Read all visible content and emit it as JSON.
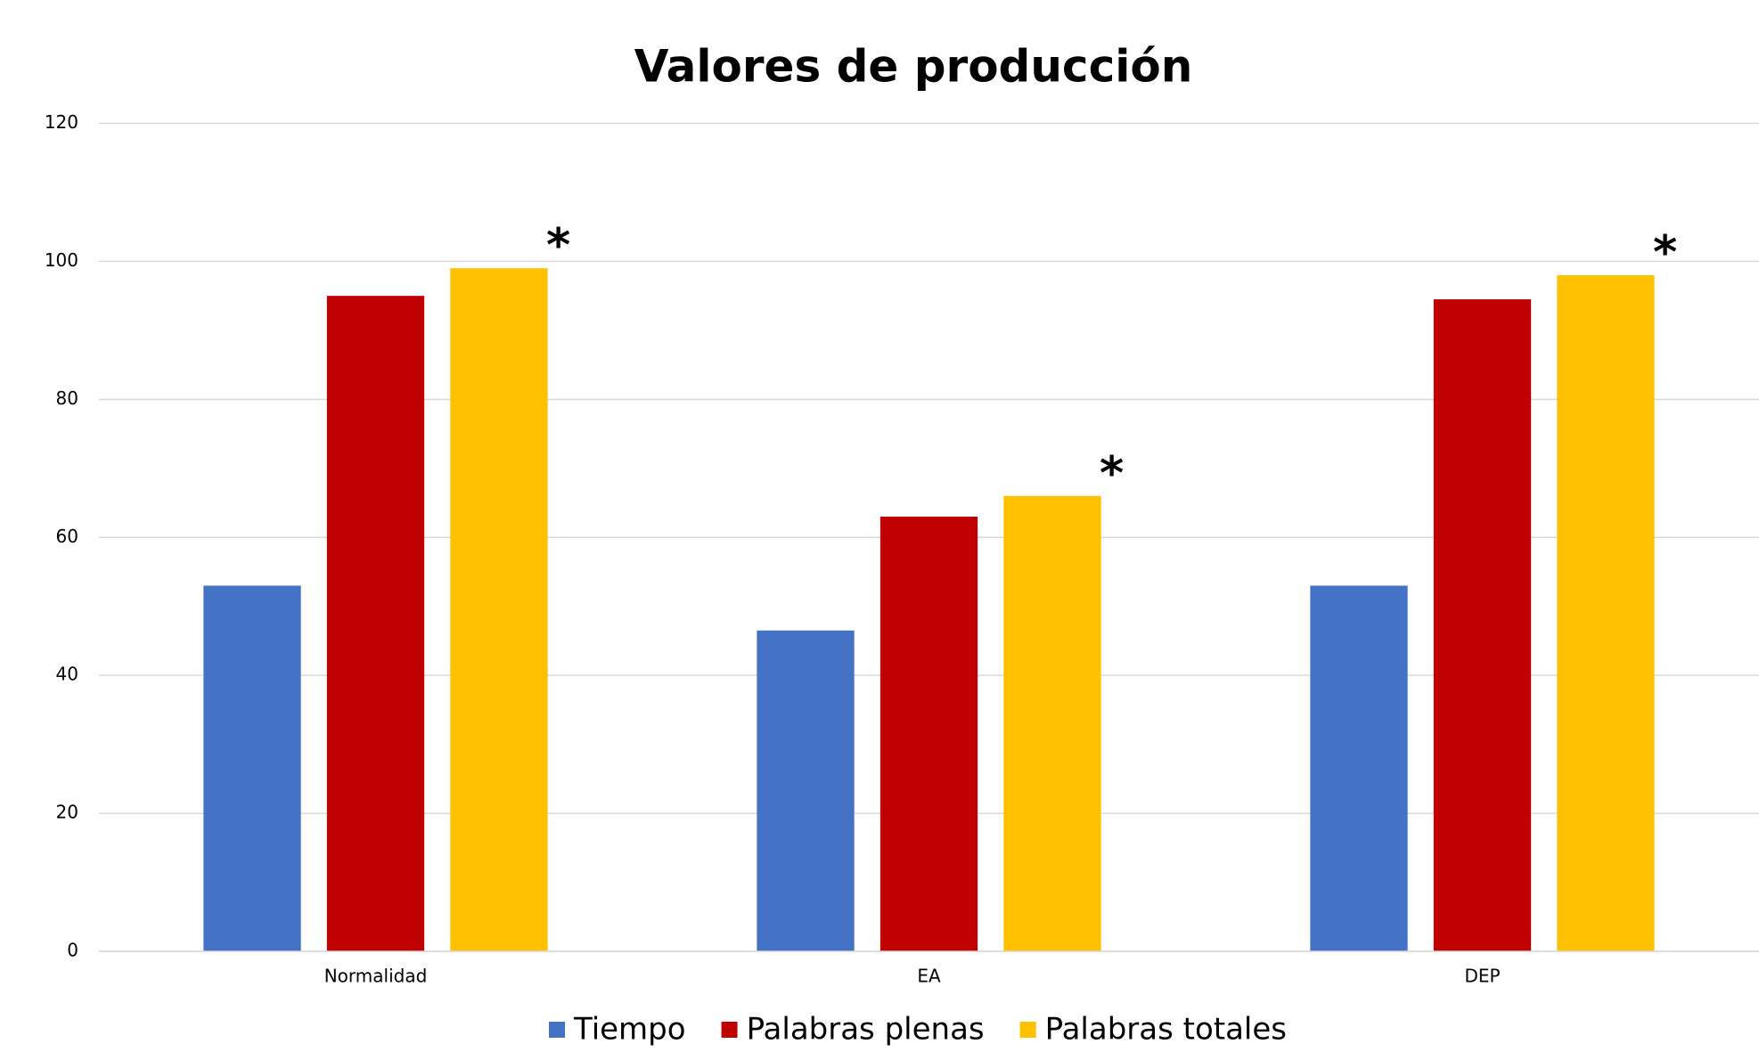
{
  "chart_data": {
    "type": "bar",
    "title": "Valores de producción",
    "categories": [
      "Normalidad",
      "EA",
      "DEP"
    ],
    "series": [
      {
        "name": "Tiempo",
        "color": "#4472c4",
        "values": [
          53,
          46.5,
          53
        ]
      },
      {
        "name": "Palabras plenas",
        "color": "#c00000",
        "values": [
          95,
          63,
          94.5
        ]
      },
      {
        "name": "Palabras totales",
        "color": "#ffc000",
        "values": [
          99,
          66,
          98
        ]
      }
    ],
    "annotations": [
      "*",
      "*",
      "*"
    ],
    "ylim": [
      0,
      120
    ],
    "yticks": [
      0,
      20,
      40,
      60,
      80,
      100,
      120
    ],
    "grid": true,
    "legend": "bottom"
  }
}
